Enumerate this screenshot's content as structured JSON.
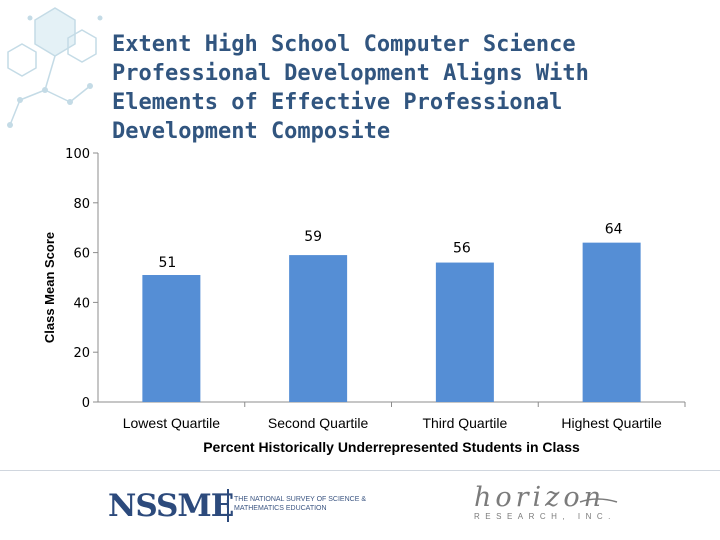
{
  "title_lines": [
    "Extent High School Computer Science",
    "Professional Development Aligns With",
    "Elements of Effective Professional",
    "Development Composite"
  ],
  "chart_data": {
    "type": "bar",
    "categories": [
      "Lowest Quartile",
      "Second Quartile",
      "Third Quartile",
      "Highest Quartile"
    ],
    "values": [
      51,
      59,
      56,
      64
    ],
    "data_labels": [
      "51",
      "59",
      "56",
      "64"
    ],
    "xlabel": "Percent Historically Underrepresented Students in Class",
    "ylabel": "Class Mean Score",
    "ylim": [
      0,
      100
    ],
    "yticks": [
      0,
      20,
      40,
      60,
      80,
      100
    ],
    "ytick_labels": [
      "0",
      "20",
      "40",
      "60",
      "80",
      "100"
    ],
    "bar_color": "#558ed5",
    "grid": false
  },
  "footer": {
    "nssme_logo": "NSSME",
    "nssme_tagline": "The National Survey of Science & Mathematics Education",
    "horizon_logo": "horizon",
    "horizon_tagline": "RESEARCH, INC."
  },
  "colors": {
    "title": "#31557f",
    "axis": "#8c8c8c",
    "text": "#000000"
  }
}
